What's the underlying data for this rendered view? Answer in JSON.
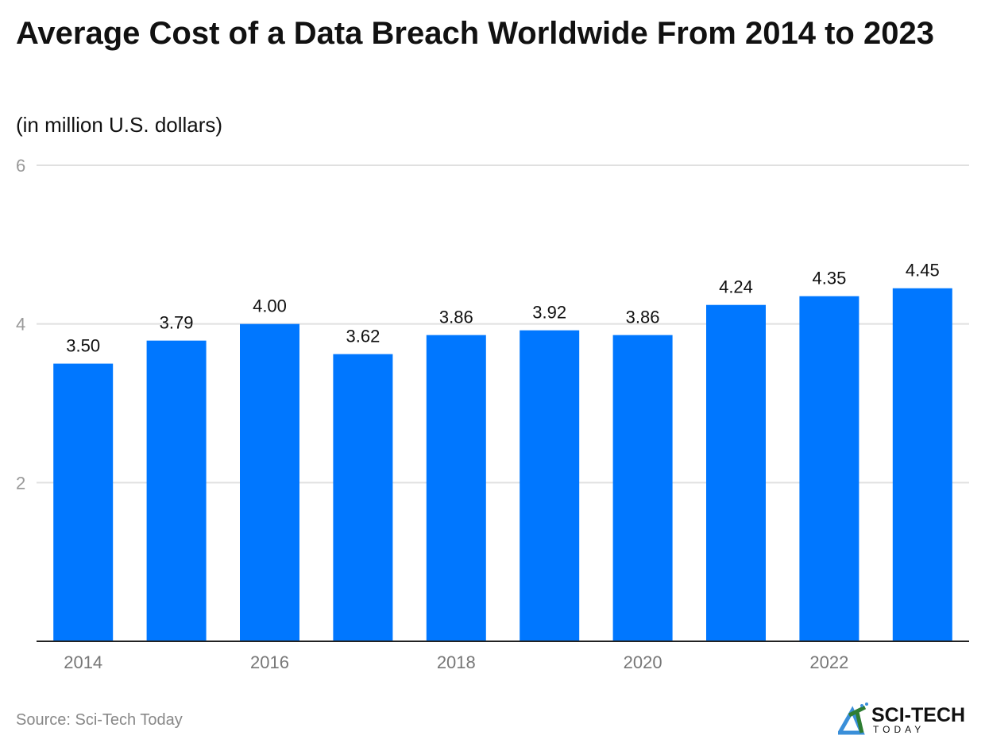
{
  "title": "Average Cost of a Data Breach Worldwide From 2014 to 2023",
  "subtitle": "(in million U.S. dollars)",
  "source": "Source: Sci-Tech Today",
  "logo": {
    "text": "SCI-TECH",
    "subtext": "TODAY"
  },
  "colors": {
    "bar": "#0077ff",
    "grid": "#e0e0e0",
    "axis": "#222222",
    "tick_label": "#999999"
  },
  "chart_data": {
    "type": "bar",
    "title": "Average Cost of a Data Breach Worldwide From 2014 to 2023",
    "subtitle": "(in million U.S. dollars)",
    "categories": [
      "2014",
      "2015",
      "2016",
      "2017",
      "2018",
      "2019",
      "2020",
      "2021",
      "2022",
      "2023"
    ],
    "values": [
      3.5,
      3.79,
      4.0,
      3.62,
      3.86,
      3.92,
      3.86,
      4.24,
      4.35,
      4.45
    ],
    "data_labels": [
      "3.50",
      "3.79",
      "4.00",
      "3.62",
      "3.86",
      "3.92",
      "3.86",
      "4.24",
      "4.35",
      "4.45"
    ],
    "x_tick_labels": [
      "2014",
      "2016",
      "2018",
      "2020",
      "2022"
    ],
    "y_ticks": [
      2,
      4,
      6
    ],
    "ylim": [
      0,
      6
    ],
    "grid": true,
    "legend": "none"
  }
}
